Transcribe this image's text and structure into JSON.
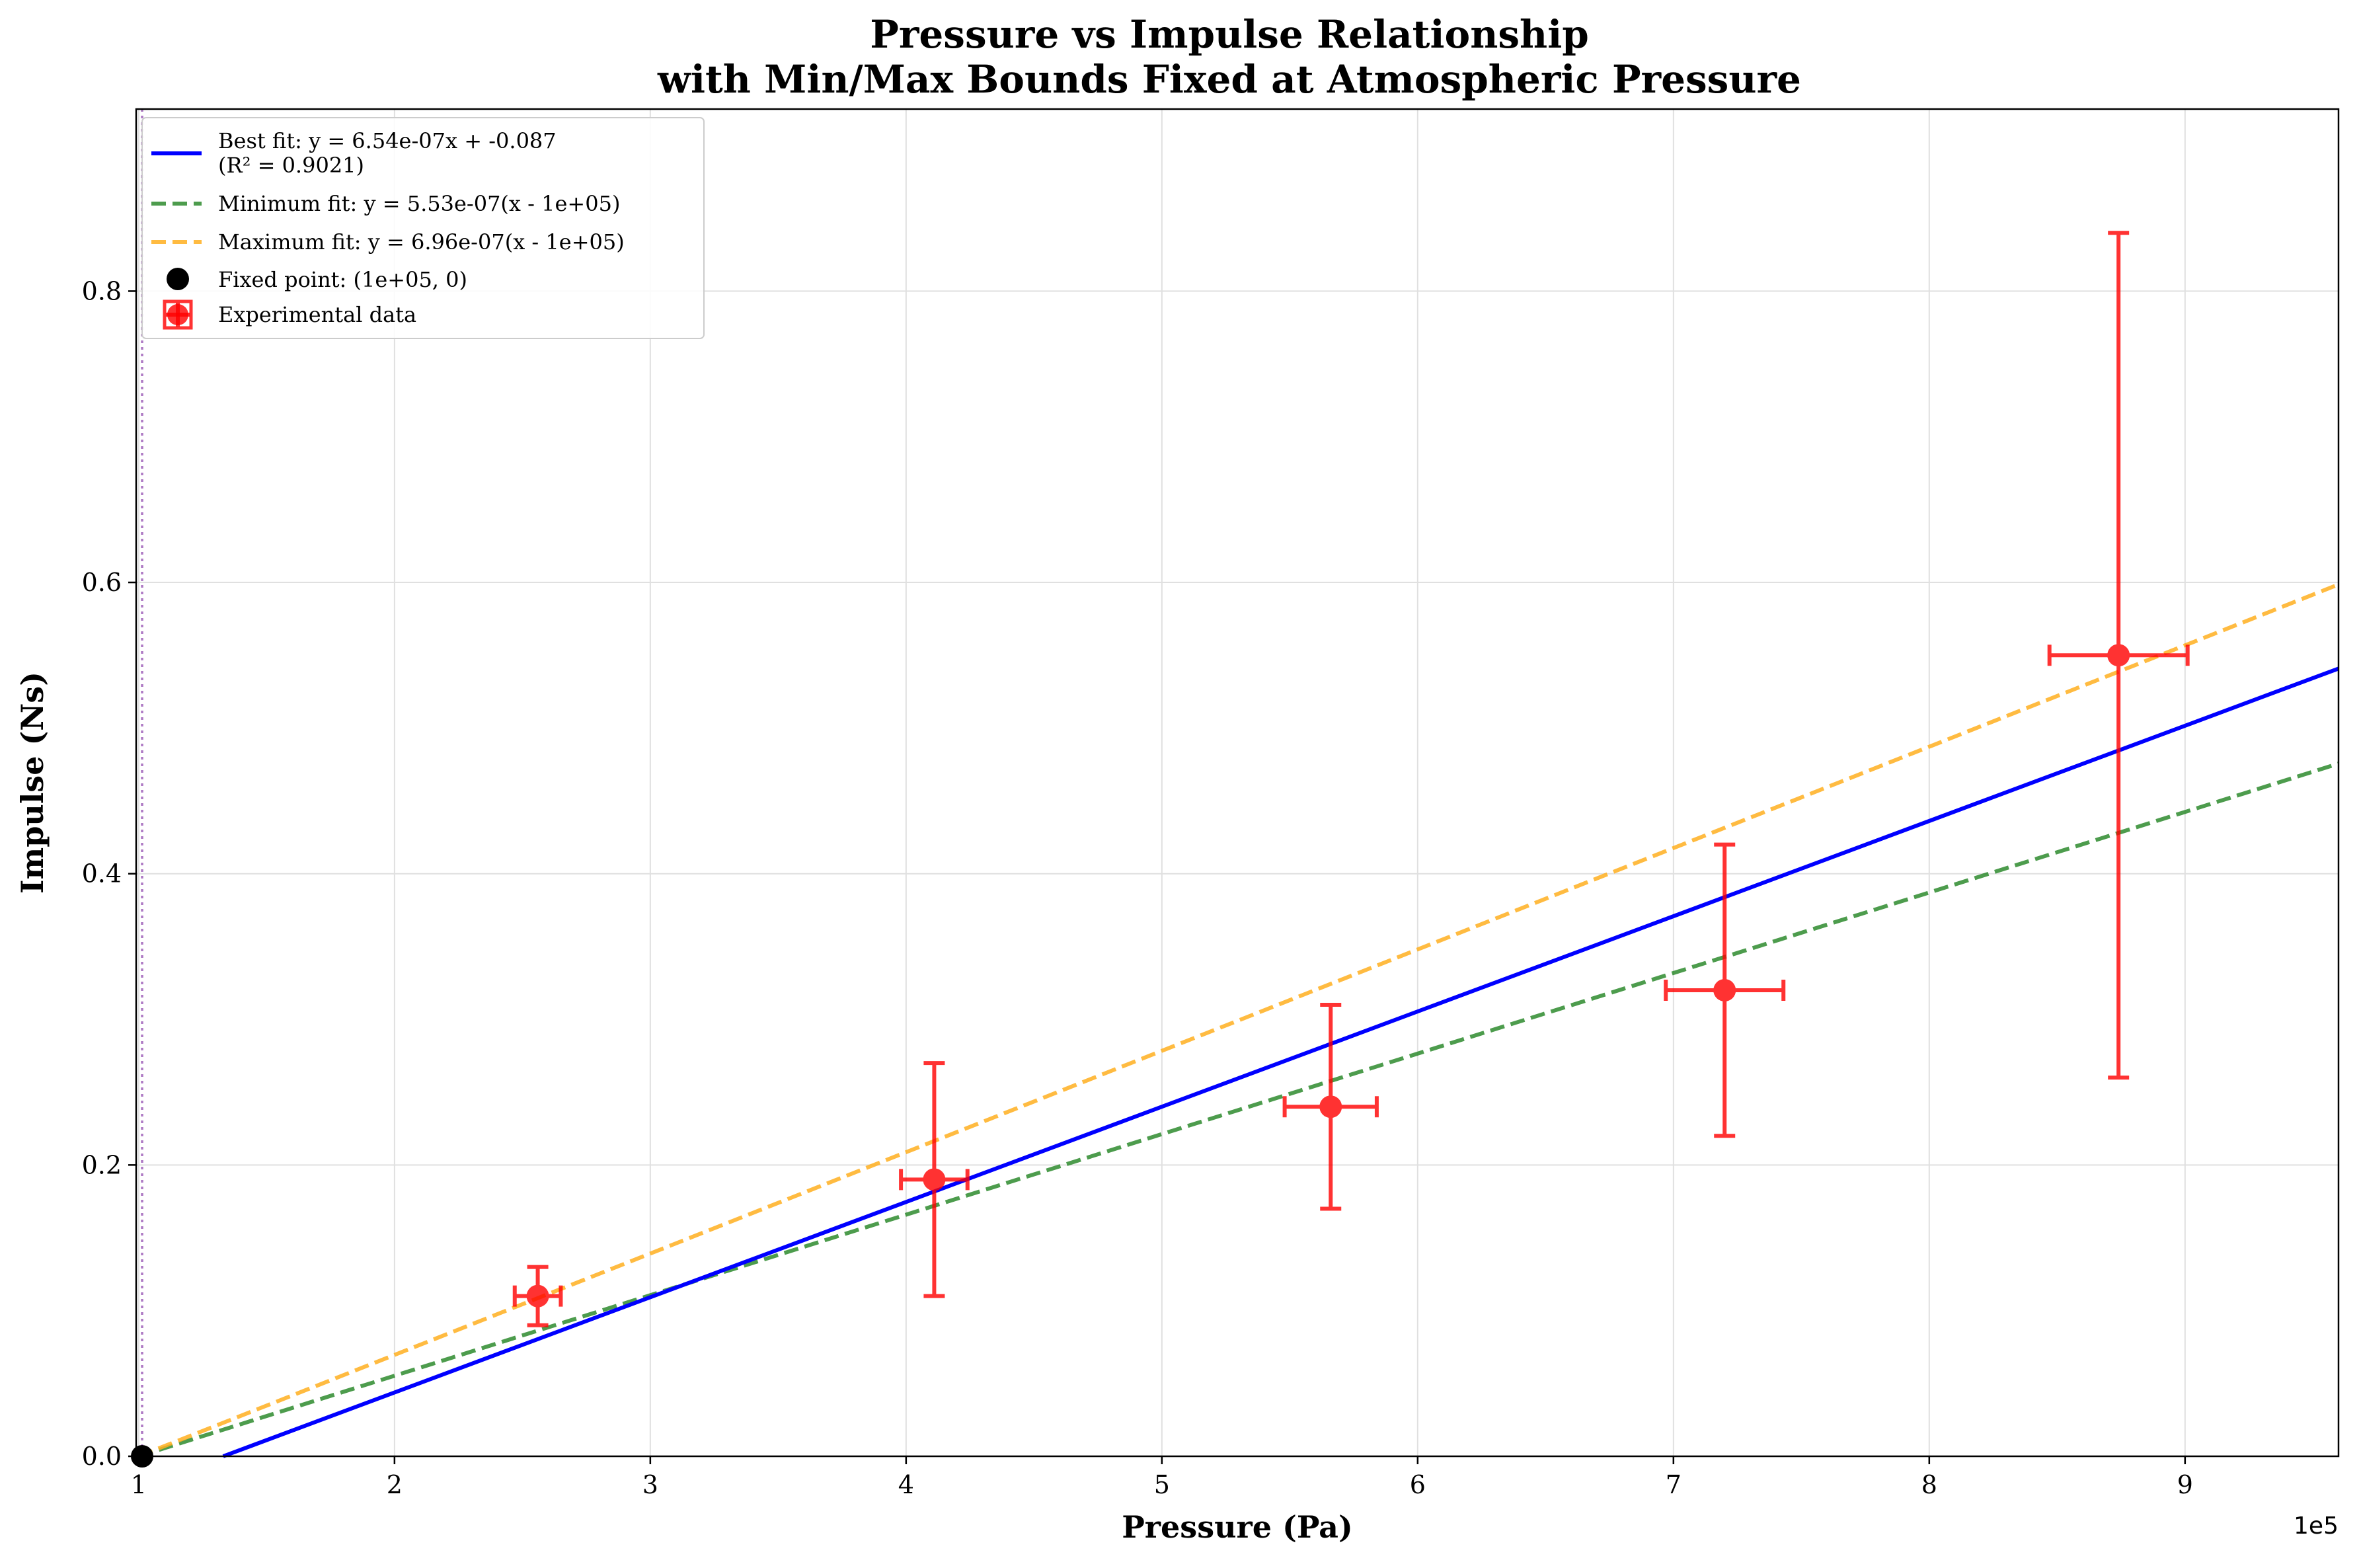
{
  "chart_data": {
    "type": "scatter",
    "title": "Pressure vs Impulse Relationship",
    "subtitle": "with Min/Max Bounds Fixed at Atmospheric Pressure",
    "xlabel": "Pressure (Pa)",
    "ylabel": "Impulse (Ns)",
    "x_offset_label": "1e5",
    "xlim": [
      99000,
      960000
    ],
    "ylim": [
      0,
      0.925
    ],
    "x_ticks": [
      100000,
      200000,
      300000,
      400000,
      500000,
      600000,
      700000,
      800000,
      900000
    ],
    "x_tick_labels": [
      "1",
      "2",
      "3",
      "4",
      "5",
      "6",
      "7",
      "8",
      "9"
    ],
    "y_ticks": [
      0,
      0.2,
      0.4,
      0.6,
      0.8
    ],
    "y_tick_labels": [
      "0.0",
      "0.2",
      "0.4",
      "0.6",
      "0.8"
    ],
    "grid": true,
    "legend_position": "top-left",
    "fit_lines": [
      {
        "name": "best",
        "label": "Best fit: y = 6.54e-07x + -0.087",
        "label_line2": "(R² = 0.9021)",
        "slope": 6.54e-07,
        "intercept": -0.087,
        "x_ref": 0,
        "color": "#0000ff",
        "style": "solid"
      },
      {
        "name": "minimum",
        "label": "Minimum fit: y = 5.53e-07(x - 1e+05)",
        "slope": 5.53e-07,
        "x_ref": 100000,
        "intercept": 0,
        "color": "#2e8b2e",
        "style": "dashed"
      },
      {
        "name": "maximum",
        "label": "Maximum fit: y = 6.96e-07(x - 1e+05)",
        "slope": 6.96e-07,
        "x_ref": 100000,
        "intercept": 0,
        "color": "#ffb020",
        "style": "dashed"
      }
    ],
    "fixed_point": {
      "label": "Fixed point: (1e+05, 0)",
      "x": 101325,
      "y": 0,
      "color": "#000000"
    },
    "vertical_marker_x": 101325,
    "vertical_marker_color": "#9b59b6",
    "series": [
      {
        "name": "Experimental data",
        "color": "#ff0000",
        "points": [
          {
            "x": 256000,
            "y": 0.11,
            "xerr": 9000,
            "yerr_low": 0.02,
            "yerr_high": 0.02
          },
          {
            "x": 411000,
            "y": 0.19,
            "xerr": 13000,
            "yerr_low": 0.08,
            "yerr_high": 0.08
          },
          {
            "x": 566000,
            "y": 0.24,
            "xerr": 18000,
            "yerr_low": 0.07,
            "yerr_high": 0.07
          },
          {
            "x": 720000,
            "y": 0.32,
            "xerr": 23000,
            "yerr_low": 0.1,
            "yerr_high": 0.1
          },
          {
            "x": 874000,
            "y": 0.55,
            "xerr": 27000,
            "yerr_low": 0.29,
            "yerr_high": 0.29
          }
        ]
      }
    ]
  }
}
